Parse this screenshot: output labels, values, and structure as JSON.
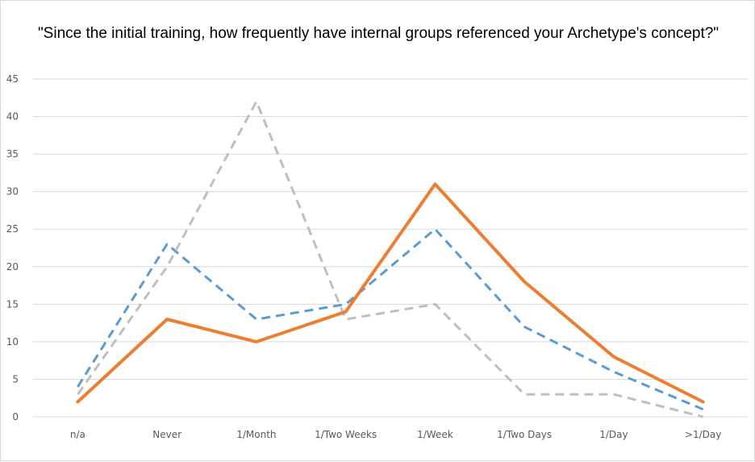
{
  "chart_data": {
    "type": "line",
    "title": "\"Since the initial training, how frequently have internal groups referenced your Archetype's concept?\"",
    "xlabel": "",
    "ylabel": "",
    "categories": [
      "n/a",
      "Never",
      "1/Month",
      "1/Two Weeks",
      "1/Week",
      "1/Two Days",
      "1/Day",
      ">1/Day"
    ],
    "ylim": [
      0,
      45
    ],
    "yticks": [
      0,
      5,
      10,
      15,
      20,
      25,
      30,
      35,
      40,
      45
    ],
    "grid": true,
    "legend": "none",
    "series": [
      {
        "values": [
          4,
          23,
          13,
          15,
          25,
          12,
          6,
          1
        ],
        "color": "#5b9bd5",
        "dash": "dashed"
      },
      {
        "values": [
          3,
          20,
          42,
          13,
          15,
          3,
          3,
          0
        ],
        "color": "#bfbfbf",
        "dash": "dashed"
      },
      {
        "values": [
          2,
          13,
          10,
          14,
          31,
          18,
          8,
          2
        ],
        "color": "#ed7d31",
        "dash": "solid"
      }
    ]
  }
}
